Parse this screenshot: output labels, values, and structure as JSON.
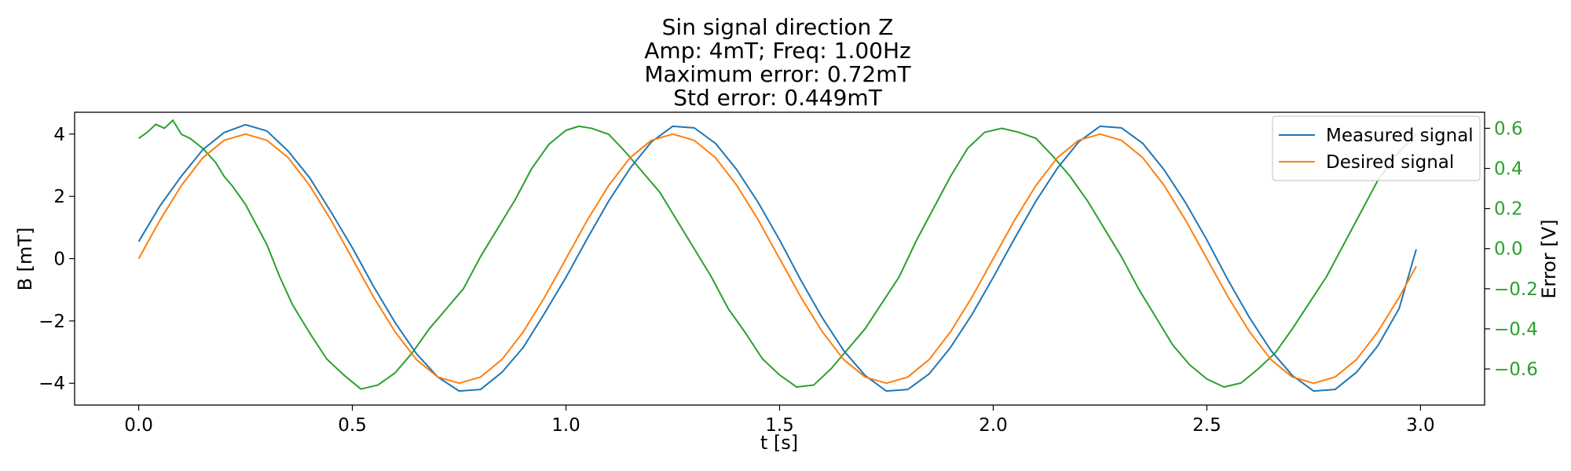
{
  "chart_data": {
    "type": "line",
    "title_lines": [
      "Sin signal direction Z",
      "Amp: 4mT; Freq: 1.00Hz",
      "Maximum error: 0.72mT",
      "Std error: 0.449mT"
    ],
    "xlabel": "t [s]",
    "ylabel": "B [mT]",
    "y2label": "Error [V]",
    "xlim": [
      -0.15,
      3.15
    ],
    "ylim": [
      -4.7,
      4.7
    ],
    "y2lim": [
      -0.78,
      0.68
    ],
    "x_ticks": [
      "0.0",
      "0.5",
      "1.0",
      "1.5",
      "2.0",
      "2.5",
      "3.0"
    ],
    "y_ticks": [
      "−4",
      "−2",
      "0",
      "2",
      "4"
    ],
    "y2_ticks": [
      "−0.6",
      "−0.4",
      "−0.2",
      "0.0",
      "0.2",
      "0.4",
      "0.6"
    ],
    "legend_position": "upper right",
    "colors": {
      "measured": "#1f77b4",
      "desired": "#ff7f0e",
      "error": "#2ca02c"
    },
    "series": [
      {
        "name": "Measured signal",
        "axis": "left",
        "color": "#1f77b4",
        "x": [
          0.0,
          0.05,
          0.1,
          0.15,
          0.2,
          0.25,
          0.3,
          0.35,
          0.4,
          0.45,
          0.5,
          0.55,
          0.6,
          0.65,
          0.7,
          0.75,
          0.8,
          0.85,
          0.9,
          0.95,
          1.0,
          1.05,
          1.1,
          1.15,
          1.2,
          1.25,
          1.3,
          1.35,
          1.4,
          1.45,
          1.5,
          1.55,
          1.6,
          1.65,
          1.7,
          1.75,
          1.8,
          1.85,
          1.9,
          1.95,
          2.0,
          2.05,
          2.1,
          2.15,
          2.2,
          2.25,
          2.3,
          2.35,
          2.4,
          2.45,
          2.5,
          2.55,
          2.6,
          2.65,
          2.7,
          2.75,
          2.8,
          2.85,
          2.9,
          2.95,
          2.99
        ],
        "y": [
          0.55,
          1.7,
          2.65,
          3.5,
          4.05,
          4.3,
          4.1,
          3.45,
          2.6,
          1.5,
          0.35,
          -0.9,
          -2.05,
          -3.05,
          -3.8,
          -4.25,
          -4.2,
          -3.65,
          -2.85,
          -1.75,
          -0.6,
          0.65,
          1.85,
          2.9,
          3.75,
          4.25,
          4.2,
          3.7,
          2.85,
          1.8,
          0.6,
          -0.7,
          -1.9,
          -2.95,
          -3.75,
          -4.25,
          -4.2,
          -3.7,
          -2.85,
          -1.8,
          -0.6,
          0.65,
          1.85,
          2.9,
          3.75,
          4.25,
          4.2,
          3.7,
          2.85,
          1.8,
          0.6,
          -0.7,
          -1.9,
          -2.95,
          -3.75,
          -4.25,
          -4.2,
          -3.65,
          -2.8,
          -1.6,
          0.3
        ]
      },
      {
        "name": "Desired signal",
        "axis": "left",
        "color": "#ff7f0e",
        "x": [
          0.0,
          0.05,
          0.1,
          0.15,
          0.2,
          0.25,
          0.3,
          0.35,
          0.4,
          0.45,
          0.5,
          0.55,
          0.6,
          0.65,
          0.7,
          0.75,
          0.8,
          0.85,
          0.9,
          0.95,
          1.0,
          1.05,
          1.1,
          1.15,
          1.2,
          1.25,
          1.3,
          1.35,
          1.4,
          1.45,
          1.5,
          1.55,
          1.6,
          1.65,
          1.7,
          1.75,
          1.8,
          1.85,
          1.9,
          1.95,
          2.0,
          2.05,
          2.1,
          2.15,
          2.2,
          2.25,
          2.3,
          2.35,
          2.4,
          2.45,
          2.5,
          2.55,
          2.6,
          2.65,
          2.7,
          2.75,
          2.8,
          2.85,
          2.9,
          2.95,
          2.99
        ],
        "y": [
          0.0,
          1.24,
          2.35,
          3.24,
          3.8,
          4.0,
          3.8,
          3.24,
          2.35,
          1.24,
          0.0,
          -1.24,
          -2.35,
          -3.24,
          -3.8,
          -4.0,
          -3.8,
          -3.24,
          -2.35,
          -1.24,
          0.0,
          1.24,
          2.35,
          3.24,
          3.8,
          4.0,
          3.8,
          3.24,
          2.35,
          1.24,
          0.0,
          -1.24,
          -2.35,
          -3.24,
          -3.8,
          -4.0,
          -3.8,
          -3.24,
          -2.35,
          -1.24,
          0.0,
          1.24,
          2.35,
          3.24,
          3.8,
          4.0,
          3.8,
          3.24,
          2.35,
          1.24,
          0.0,
          -1.24,
          -2.35,
          -3.24,
          -3.8,
          -4.0,
          -3.8,
          -3.24,
          -2.35,
          -1.24,
          -0.25
        ]
      },
      {
        "axis": "right",
        "color": "#2ca02c",
        "x": [
          0.0,
          0.02,
          0.04,
          0.06,
          0.08,
          0.1,
          0.12,
          0.15,
          0.18,
          0.2,
          0.22,
          0.25,
          0.28,
          0.3,
          0.33,
          0.36,
          0.4,
          0.44,
          0.48,
          0.52,
          0.56,
          0.6,
          0.64,
          0.68,
          0.72,
          0.76,
          0.8,
          0.84,
          0.88,
          0.92,
          0.96,
          1.0,
          1.03,
          1.06,
          1.1,
          1.14,
          1.18,
          1.22,
          1.26,
          1.3,
          1.34,
          1.38,
          1.42,
          1.46,
          1.5,
          1.54,
          1.58,
          1.62,
          1.66,
          1.7,
          1.74,
          1.78,
          1.82,
          1.86,
          1.9,
          1.94,
          1.98,
          2.02,
          2.06,
          2.1,
          2.14,
          2.18,
          2.22,
          2.26,
          2.3,
          2.34,
          2.38,
          2.42,
          2.46,
          2.5,
          2.54,
          2.58,
          2.62,
          2.66,
          2.7,
          2.74,
          2.78,
          2.82,
          2.86,
          2.9,
          2.94,
          2.99
        ],
        "y": [
          0.55,
          0.58,
          0.62,
          0.6,
          0.64,
          0.57,
          0.55,
          0.5,
          0.43,
          0.36,
          0.31,
          0.22,
          0.1,
          0.02,
          -0.14,
          -0.28,
          -0.42,
          -0.55,
          -0.63,
          -0.7,
          -0.68,
          -0.62,
          -0.52,
          -0.4,
          -0.3,
          -0.2,
          -0.04,
          0.1,
          0.24,
          0.4,
          0.52,
          0.59,
          0.61,
          0.6,
          0.57,
          0.48,
          0.38,
          0.28,
          0.14,
          0.0,
          -0.14,
          -0.3,
          -0.42,
          -0.55,
          -0.63,
          -0.69,
          -0.68,
          -0.6,
          -0.5,
          -0.4,
          -0.27,
          -0.14,
          0.04,
          0.2,
          0.36,
          0.5,
          0.58,
          0.6,
          0.58,
          0.55,
          0.46,
          0.36,
          0.24,
          0.1,
          -0.04,
          -0.2,
          -0.34,
          -0.48,
          -0.58,
          -0.65,
          -0.69,
          -0.67,
          -0.6,
          -0.52,
          -0.4,
          -0.27,
          -0.14,
          0.02,
          0.18,
          0.34,
          0.46,
          0.57
        ]
      }
    ]
  }
}
